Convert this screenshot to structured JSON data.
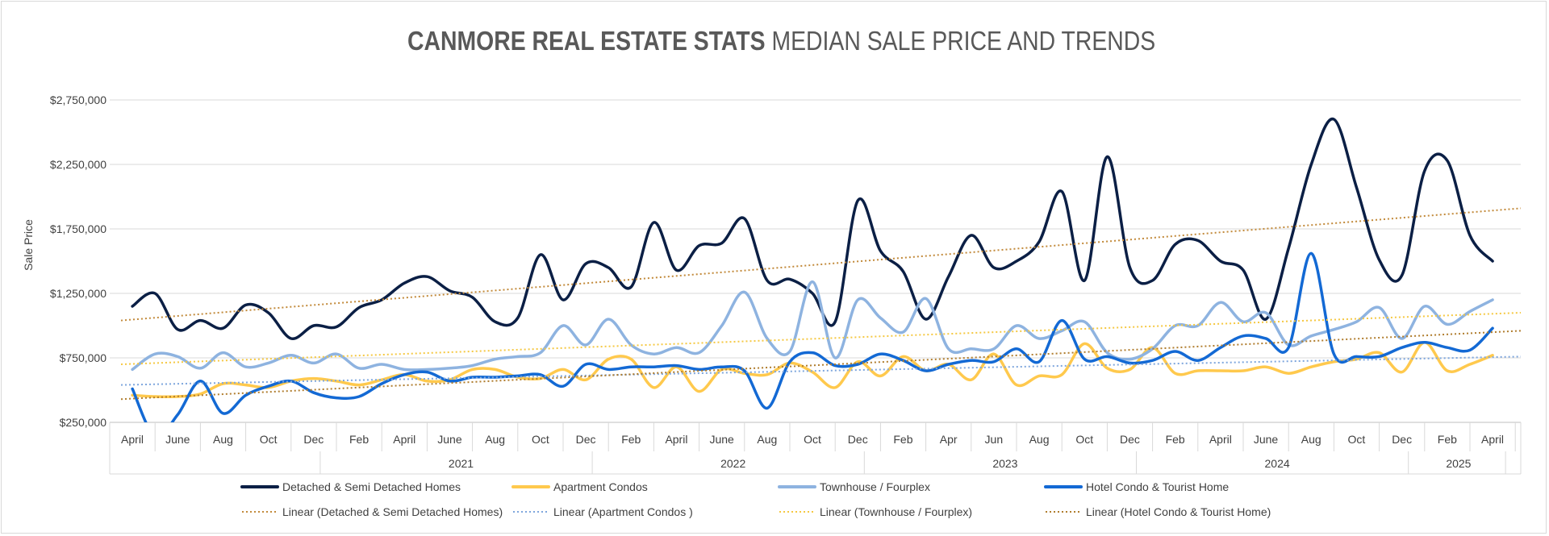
{
  "chart_data": {
    "type": "line",
    "title_bold": "CANMORE REAL ESTATE STATS",
    "title_rest": "MEDIAN SALE PRICE AND TRENDS",
    "ylabel": "Sale Price",
    "ylim": [
      250000,
      2750000
    ],
    "yticks": [
      250000,
      750000,
      1250000,
      1750000,
      2250000,
      2750000
    ],
    "ytick_labels": [
      "$250,000",
      "$750,000",
      "$1,250,000",
      "$1,750,000",
      "$2,250,000",
      "$2,750,000"
    ],
    "x": [
      "2020-04",
      "2020-05",
      "2020-06",
      "2020-07",
      "2020-08",
      "2020-09",
      "2020-10",
      "2020-11",
      "2020-12",
      "2021-01",
      "2021-02",
      "2021-03",
      "2021-04",
      "2021-05",
      "2021-06",
      "2021-07",
      "2021-08",
      "2021-09",
      "2021-10",
      "2021-11",
      "2021-12",
      "2022-01",
      "2022-02",
      "2022-03",
      "2022-04",
      "2022-05",
      "2022-06",
      "2022-07",
      "2022-08",
      "2022-09",
      "2022-10",
      "2022-11",
      "2022-12",
      "2023-01",
      "2023-02",
      "2023-03",
      "2023-04",
      "2023-05",
      "2023-06",
      "2023-07",
      "2023-08",
      "2023-09",
      "2023-10",
      "2023-11",
      "2023-12",
      "2024-01",
      "2024-02",
      "2024-03",
      "2024-04",
      "2024-05",
      "2024-06",
      "2024-07",
      "2024-08",
      "2024-09",
      "2024-10",
      "2024-11",
      "2024-12",
      "2025-01",
      "2025-02",
      "2025-03",
      "2025-04"
    ],
    "month_tick_labels": [
      "April",
      "June",
      "Aug",
      "Oct",
      "Dec",
      "Feb",
      "April",
      "June",
      "Aug",
      "Oct",
      "Dec",
      "Feb",
      "April",
      "June",
      "Aug",
      "Oct",
      "Dec",
      "Feb",
      "Apr",
      "Jun",
      "Aug",
      "Oct",
      "Dec",
      "Feb",
      "April",
      "June",
      "Aug",
      "Oct",
      "Dec",
      "Feb",
      "April"
    ],
    "year_labels": [
      "2021",
      "2022",
      "2023",
      "2024",
      "2025"
    ],
    "series": [
      {
        "name": "Detached & Semi Detached Homes",
        "color": "#0b1f45",
        "width": 3.5,
        "values": [
          1150000,
          1250000,
          970000,
          1040000,
          980000,
          1160000,
          1100000,
          900000,
          1000000,
          990000,
          1140000,
          1200000,
          1330000,
          1380000,
          1270000,
          1220000,
          1030000,
          1060000,
          1550000,
          1200000,
          1480000,
          1450000,
          1300000,
          1800000,
          1430000,
          1620000,
          1640000,
          1830000,
          1350000,
          1360000,
          1250000,
          1030000,
          1970000,
          1580000,
          1420000,
          1050000,
          1380000,
          1700000,
          1450000,
          1500000,
          1650000,
          2040000,
          1350000,
          2310000,
          1450000,
          1350000,
          1630000,
          1660000,
          1500000,
          1430000,
          1050000,
          1600000,
          2250000,
          2600000,
          2070000,
          1510000,
          1390000,
          2200000,
          2280000,
          1700000,
          1500000
        ]
      },
      {
        "name": "Apartment Condos",
        "color": "#ffc94d",
        "width": 3.5,
        "values": [
          460000,
          450000,
          450000,
          470000,
          550000,
          540000,
          520000,
          570000,
          590000,
          570000,
          540000,
          580000,
          620000,
          570000,
          580000,
          660000,
          660000,
          600000,
          590000,
          660000,
          580000,
          740000,
          740000,
          520000,
          680000,
          490000,
          660000,
          630000,
          620000,
          710000,
          640000,
          520000,
          720000,
          610000,
          760000,
          650000,
          700000,
          580000,
          780000,
          540000,
          610000,
          620000,
          860000,
          670000,
          660000,
          830000,
          630000,
          650000,
          650000,
          650000,
          680000,
          630000,
          680000,
          720000,
          740000,
          790000,
          640000,
          870000,
          650000,
          700000,
          770000
        ]
      },
      {
        "name": "Townhouse / Fourplex",
        "color": "#8eb3e0",
        "width": 3.5,
        "values": [
          660000,
          780000,
          760000,
          670000,
          790000,
          680000,
          710000,
          770000,
          710000,
          780000,
          670000,
          700000,
          660000,
          660000,
          670000,
          690000,
          740000,
          760000,
          790000,
          1000000,
          850000,
          1050000,
          850000,
          780000,
          830000,
          790000,
          1000000,
          1260000,
          900000,
          800000,
          1340000,
          750000,
          1200000,
          1060000,
          950000,
          1210000,
          820000,
          820000,
          820000,
          1000000,
          900000,
          960000,
          1030000,
          790000,
          740000,
          820000,
          1000000,
          1000000,
          1180000,
          1030000,
          1100000,
          850000,
          920000,
          970000,
          1030000,
          1140000,
          900000,
          1150000,
          1010000,
          1110000,
          1200000
        ]
      },
      {
        "name": "Hotel Condo & Tourist Home",
        "color": "#1369d4",
        "width": 3.5,
        "values": [
          510000,
          140000,
          310000,
          570000,
          320000,
          460000,
          530000,
          570000,
          480000,
          440000,
          450000,
          550000,
          620000,
          640000,
          570000,
          600000,
          600000,
          610000,
          620000,
          530000,
          700000,
          660000,
          680000,
          680000,
          690000,
          660000,
          680000,
          650000,
          360000,
          720000,
          790000,
          690000,
          700000,
          780000,
          730000,
          650000,
          700000,
          730000,
          720000,
          820000,
          720000,
          1040000,
          740000,
          760000,
          710000,
          730000,
          800000,
          730000,
          830000,
          920000,
          900000,
          830000,
          1560000,
          780000,
          760000,
          760000,
          830000,
          870000,
          830000,
          810000,
          980000
        ]
      }
    ],
    "trendlines": [
      {
        "name": "Linear (Detached & Semi Detached Homes)",
        "color": "#c28a3b",
        "start": 1040000,
        "end": 1910000
      },
      {
        "name": "Linear (Apartment Condos )",
        "color": "#7ea6dd",
        "start": 540000,
        "end": 760000
      },
      {
        "name": "Linear (Townhouse / Fourplex)",
        "color": "#f5c842",
        "start": 700000,
        "end": 1100000
      },
      {
        "name": "Linear (Hotel Condo & Tourist Home)",
        "color": "#b07d2e",
        "start": 430000,
        "end": 960000
      }
    ],
    "legend_placement": "bottom",
    "grid": true
  }
}
